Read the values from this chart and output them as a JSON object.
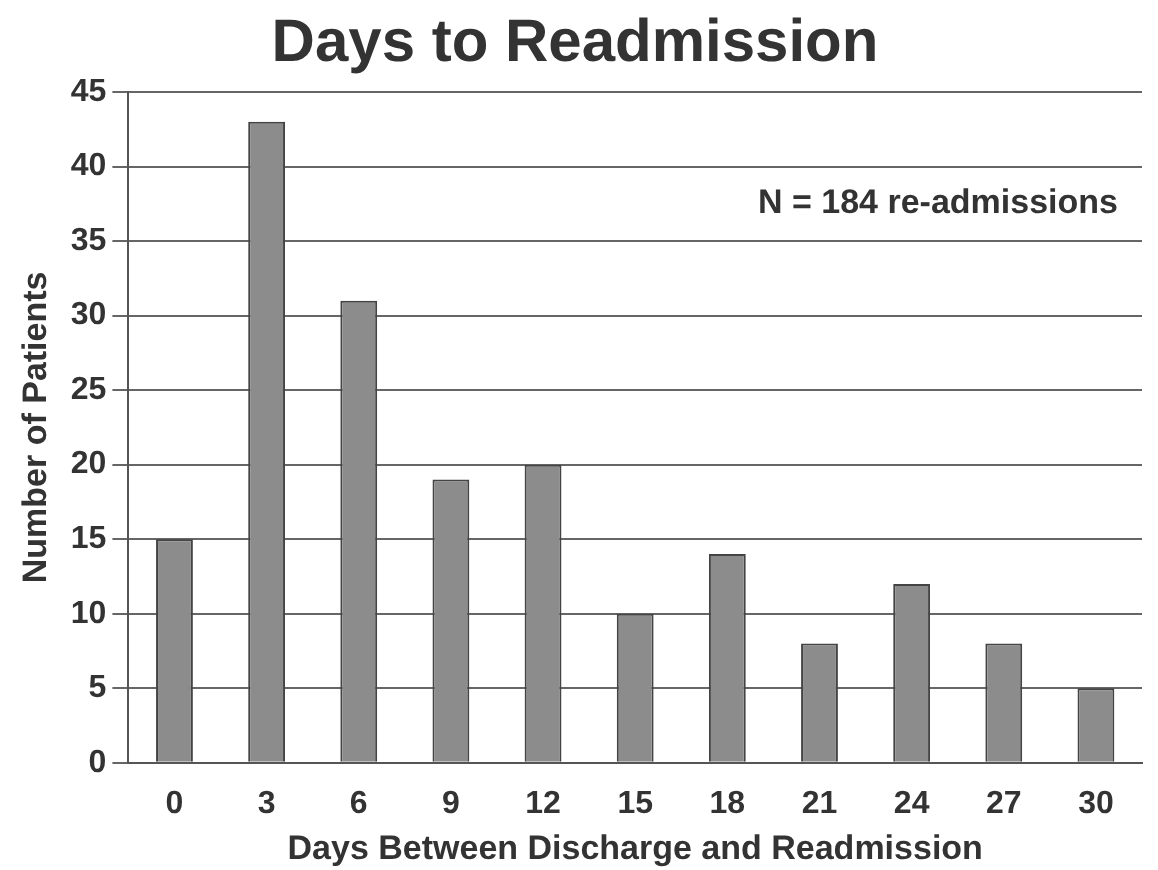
{
  "chart_data": {
    "type": "bar",
    "title": "Days to Readmission",
    "xlabel": "Days Between Discharge and Readmission",
    "ylabel": "Number of Patients",
    "categories": [
      "0",
      "3",
      "6",
      "9",
      "12",
      "15",
      "18",
      "21",
      "24",
      "27",
      "30"
    ],
    "values": [
      15,
      43,
      31,
      19,
      20,
      10,
      14,
      8,
      12,
      8,
      5
    ],
    "color": "#8c8c8c",
    "ylim": [
      0,
      45
    ],
    "yticks": [
      0,
      5,
      10,
      15,
      20,
      25,
      30,
      35,
      40,
      45
    ],
    "grid": "y",
    "annotations": [
      "N = 184 re-admissions"
    ]
  }
}
